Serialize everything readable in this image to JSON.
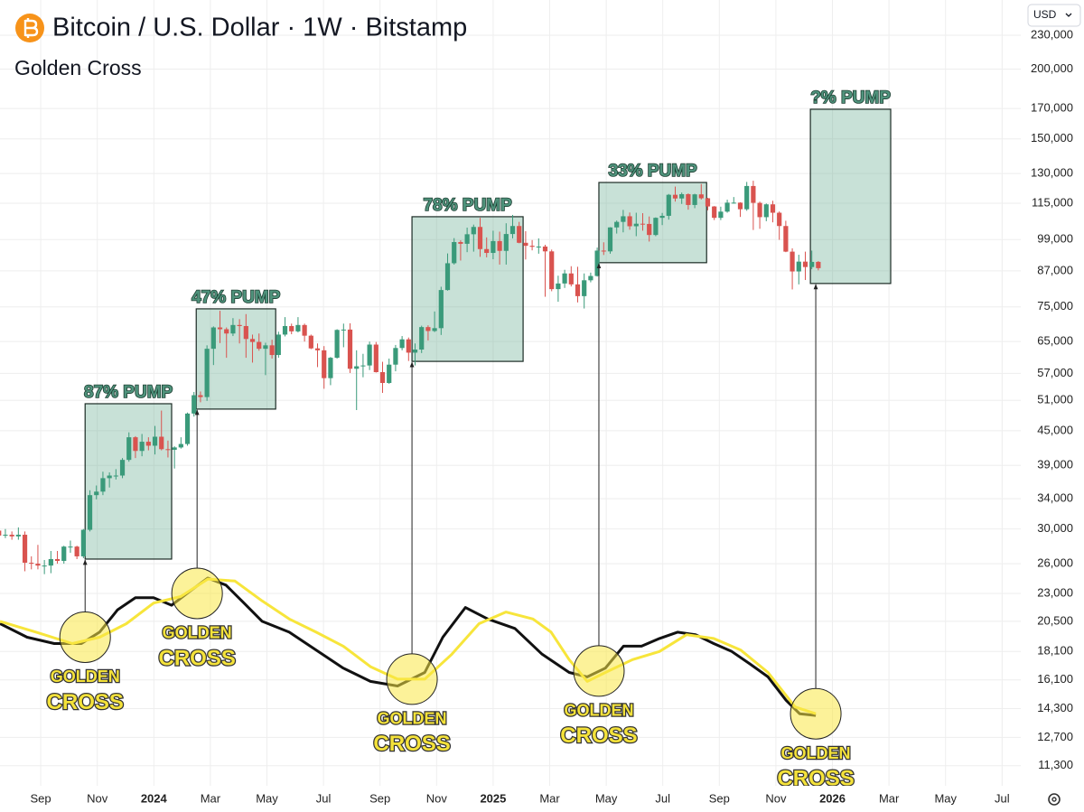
{
  "chart_data": {
    "type": "candlestick",
    "title": "Bitcoin / U.S. Dollar · 1W · Bitstamp",
    "subtitle": "Golden Cross",
    "currency": "USD",
    "log_scale": true,
    "grid": true,
    "up_color": "#3a9a7a",
    "down_color": "#d9534f",
    "xlim": [
      6.56,
      42.66
    ],
    "xticks": [
      {
        "value": 8,
        "label": "Sep"
      },
      {
        "value": 10,
        "label": "Nov"
      },
      {
        "value": 12,
        "label": "2024"
      },
      {
        "value": 14,
        "label": "Mar"
      },
      {
        "value": 16,
        "label": "May"
      },
      {
        "value": 18,
        "label": "Jul"
      },
      {
        "value": 20,
        "label": "Sep"
      },
      {
        "value": 22,
        "label": "Nov"
      },
      {
        "value": 24,
        "label": "2025"
      },
      {
        "value": 26,
        "label": "Mar"
      },
      {
        "value": 28,
        "label": "May"
      },
      {
        "value": 30,
        "label": "Jul"
      },
      {
        "value": 32,
        "label": "Sep"
      },
      {
        "value": 34,
        "label": "Nov"
      },
      {
        "value": 36,
        "label": "2026"
      },
      {
        "value": 38,
        "label": "Mar"
      },
      {
        "value": 40,
        "label": "May"
      },
      {
        "value": 42,
        "label": "Jul"
      }
    ],
    "ylim": [
      10400,
      266000
    ],
    "yticks": [
      {
        "value": 230000,
        "label": "230,000"
      },
      {
        "value": 200000,
        "label": "200,000"
      },
      {
        "value": 170000,
        "label": "170,000"
      },
      {
        "value": 150000,
        "label": "150,000"
      },
      {
        "value": 130000,
        "label": "130,000"
      },
      {
        "value": 115000,
        "label": "115,000"
      },
      {
        "value": 99000,
        "label": "99,000"
      },
      {
        "value": 87000,
        "label": "87,000"
      },
      {
        "value": 75000,
        "label": "75,000"
      },
      {
        "value": 65000,
        "label": "65,000"
      },
      {
        "value": 57000,
        "label": "57,000"
      },
      {
        "value": 51000,
        "label": "51,000"
      },
      {
        "value": 45000,
        "label": "45,000"
      },
      {
        "value": 39000,
        "label": "39,000"
      },
      {
        "value": 34000,
        "label": "34,000"
      },
      {
        "value": 30000,
        "label": "30,000"
      },
      {
        "value": 26000,
        "label": "26,000"
      },
      {
        "value": 23000,
        "label": "23,000"
      },
      {
        "value": 20500,
        "label": "20,500"
      },
      {
        "value": 18100,
        "label": "18,100"
      },
      {
        "value": 16100,
        "label": "16,100"
      },
      {
        "value": 14300,
        "label": "14,300"
      },
      {
        "value": 12700,
        "label": "12,700"
      },
      {
        "value": 11300,
        "label": "11,300"
      }
    ],
    "x": [
      6.52,
      6.75,
      6.98,
      7.21,
      7.44,
      7.67,
      7.9,
      8.13,
      8.36,
      8.59,
      8.82,
      9.05,
      9.28,
      9.51,
      9.74,
      9.97,
      10.2,
      10.43,
      10.66,
      10.89,
      11.12,
      11.35,
      11.58,
      11.81,
      12.04,
      12.27,
      12.5,
      12.73,
      12.96,
      13.19,
      13.42,
      13.65,
      13.88,
      14.11,
      14.34,
      14.57,
      14.8,
      15.03,
      15.26,
      15.49,
      15.72,
      15.95,
      16.18,
      16.41,
      16.64,
      16.87,
      17.1,
      17.33,
      17.56,
      17.79,
      18.02,
      18.25,
      18.48,
      18.71,
      18.94,
      19.17,
      19.4,
      19.63,
      19.86,
      20.09,
      20.32,
      20.55,
      20.78,
      21.01,
      21.24,
      21.47,
      21.7,
      21.93,
      22.16,
      22.39,
      22.62,
      22.85,
      23.08,
      23.31,
      23.54,
      23.77,
      24.0,
      24.23,
      24.46,
      24.69,
      24.92,
      25.15,
      25.38,
      25.61,
      25.84,
      26.07,
      26.3,
      26.53,
      26.76,
      26.99,
      27.22,
      27.45,
      27.68,
      27.91,
      28.14,
      28.37,
      28.6,
      28.83,
      29.06,
      29.29,
      29.52,
      29.75,
      29.98,
      30.21,
      30.44,
      30.67,
      30.9,
      31.13,
      31.36,
      31.59,
      31.82,
      32.05,
      32.28,
      32.51,
      32.74,
      32.97,
      33.2,
      33.43,
      33.66,
      33.89,
      34.12,
      34.35,
      34.58,
      34.81,
      35.04,
      35.27,
      35.5
    ],
    "ohlc": [
      [
        29800,
        30300,
        29000,
        29200
      ],
      [
        29200,
        30000,
        28900,
        29300
      ],
      [
        29300,
        29700,
        28700,
        29100
      ],
      [
        29100,
        30200,
        28700,
        29300
      ],
      [
        29300,
        29700,
        25200,
        26100
      ],
      [
        26100,
        26800,
        25400,
        26000
      ],
      [
        26000,
        28100,
        25400,
        25800
      ],
      [
        25800,
        26400,
        24900,
        25800
      ],
      [
        25800,
        27400,
        25000,
        26500
      ],
      [
        26500,
        27400,
        26000,
        26300
      ],
      [
        26300,
        28000,
        26000,
        27900
      ],
      [
        27900,
        28600,
        27200,
        27900
      ],
      [
        27900,
        28000,
        26500,
        26800
      ],
      [
        26800,
        30000,
        26600,
        29900
      ],
      [
        29900,
        35200,
        29700,
        34500
      ],
      [
        34500,
        35900,
        33900,
        35000
      ],
      [
        35000,
        38000,
        34500,
        37000
      ],
      [
        37000,
        37900,
        35600,
        37400
      ],
      [
        37400,
        38400,
        36800,
        37400
      ],
      [
        37400,
        40200,
        37000,
        39900
      ],
      [
        39900,
        44700,
        39600,
        43800
      ],
      [
        43800,
        44000,
        40200,
        41400
      ],
      [
        41400,
        44400,
        40500,
        43000
      ],
      [
        43000,
        43800,
        41500,
        42300
      ],
      [
        42300,
        45900,
        40800,
        43900
      ],
      [
        43900,
        48900,
        41500,
        41700
      ],
      [
        41700,
        43200,
        40300,
        41600
      ],
      [
        41600,
        42200,
        38500,
        42000
      ],
      [
        42000,
        43800,
        41800,
        42600
      ],
      [
        42600,
        48500,
        42300,
        48300
      ],
      [
        48300,
        52800,
        47700,
        52100
      ],
      [
        52100,
        52900,
        50600,
        51700
      ],
      [
        51700,
        64000,
        50900,
        63100
      ],
      [
        63100,
        69200,
        59000,
        68900
      ],
      [
        68900,
        73800,
        64600,
        68400
      ],
      [
        68400,
        68900,
        60800,
        67200
      ],
      [
        67200,
        71600,
        66500,
        69600
      ],
      [
        69600,
        71300,
        64500,
        69300
      ],
      [
        69300,
        72800,
        60800,
        65700
      ],
      [
        65700,
        66900,
        59600,
        64900
      ],
      [
        64900,
        67200,
        62600,
        63100
      ],
      [
        63100,
        64700,
        56600,
        64000
      ],
      [
        64000,
        65500,
        60600,
        61500
      ],
      [
        61500,
        67700,
        60800,
        66900
      ],
      [
        66900,
        71900,
        66400,
        69300
      ],
      [
        69300,
        70000,
        67000,
        67800
      ],
      [
        67800,
        71900,
        67500,
        69600
      ],
      [
        69600,
        70000,
        65000,
        66600
      ],
      [
        66600,
        66900,
        63000,
        63200
      ],
      [
        63200,
        64500,
        58500,
        62700
      ],
      [
        62700,
        63800,
        53500,
        55900
      ],
      [
        55900,
        61000,
        54300,
        60800
      ],
      [
        60800,
        68400,
        60600,
        68200
      ],
      [
        68200,
        70000,
        63500,
        68300
      ],
      [
        68300,
        70100,
        57100,
        58100
      ],
      [
        58100,
        62700,
        49000,
        58700
      ],
      [
        58700,
        61800,
        56100,
        58900
      ],
      [
        58900,
        65000,
        57800,
        64200
      ],
      [
        64200,
        64900,
        57200,
        57300
      ],
      [
        57300,
        59800,
        52600,
        54800
      ],
      [
        54800,
        60600,
        54600,
        59100
      ],
      [
        59100,
        64100,
        57500,
        63300
      ],
      [
        63300,
        66500,
        62700,
        65600
      ],
      [
        65600,
        66100,
        60000,
        62100
      ],
      [
        62100,
        64500,
        58900,
        62900
      ],
      [
        62900,
        69400,
        62000,
        69000
      ],
      [
        69000,
        69500,
        65300,
        67900
      ],
      [
        67900,
        73600,
        67600,
        68700
      ],
      [
        68700,
        81500,
        66800,
        80400
      ],
      [
        80400,
        93500,
        80200,
        89800
      ],
      [
        89800,
        99600,
        89300,
        98000
      ],
      [
        98000,
        98700,
        90800,
        97300
      ],
      [
        97300,
        104000,
        94000,
        101200
      ],
      [
        101200,
        105300,
        94200,
        104300
      ],
      [
        104300,
        108300,
        92200,
        95200
      ],
      [
        95200,
        99900,
        92000,
        93700
      ],
      [
        93700,
        102700,
        91300,
        98400
      ],
      [
        98400,
        102300,
        89300,
        94500
      ],
      [
        94500,
        105900,
        89300,
        101300
      ],
      [
        101300,
        109600,
        99500,
        104700
      ],
      [
        104700,
        106500,
        97500,
        97700
      ],
      [
        97700,
        102500,
        91200,
        96500
      ],
      [
        96500,
        98800,
        94700,
        96100
      ],
      [
        96100,
        99500,
        93400,
        96200
      ],
      [
        96200,
        96900,
        78200,
        94300
      ],
      [
        94300,
        95000,
        80000,
        80700
      ],
      [
        80700,
        85300,
        76600,
        82600
      ],
      [
        82600,
        87400,
        81100,
        86100
      ],
      [
        86100,
        88700,
        81600,
        82300
      ],
      [
        82300,
        88500,
        76400,
        78400
      ],
      [
        78400,
        86100,
        74500,
        83700
      ],
      [
        83700,
        86400,
        83000,
        85200
      ],
      [
        85200,
        95800,
        85000,
        94600
      ],
      [
        94600,
        97900,
        92900,
        94300
      ],
      [
        94300,
        104200,
        93400,
        104100
      ],
      [
        104100,
        107100,
        101500,
        106500
      ],
      [
        106500,
        111900,
        102000,
        109000
      ],
      [
        109000,
        110700,
        103100,
        104600
      ],
      [
        104600,
        110600,
        100400,
        105700
      ],
      [
        105700,
        110400,
        102700,
        105600
      ],
      [
        105600,
        108900,
        98200,
        100900
      ],
      [
        100900,
        108500,
        100400,
        108300
      ],
      [
        108300,
        110500,
        105100,
        109200
      ],
      [
        109200,
        119500,
        107500,
        119100
      ],
      [
        119100,
        123200,
        115800,
        117300
      ],
      [
        117300,
        120200,
        114700,
        119400
      ],
      [
        119400,
        119800,
        112000,
        114200
      ],
      [
        114200,
        119600,
        112700,
        119300
      ],
      [
        119300,
        124500,
        116800,
        117400
      ],
      [
        117400,
        117600,
        111700,
        113500
      ],
      [
        113500,
        113700,
        107300,
        108300
      ],
      [
        108300,
        113400,
        107300,
        111100
      ],
      [
        111100,
        116700,
        110600,
        115300
      ],
      [
        115300,
        118000,
        114800,
        115300
      ],
      [
        115300,
        115500,
        108700,
        112200
      ],
      [
        112200,
        125600,
        111500,
        123500
      ],
      [
        123500,
        126200,
        103000,
        115200
      ],
      [
        115200,
        115800,
        103500,
        108600
      ],
      [
        108600,
        114900,
        106800,
        114500
      ],
      [
        114500,
        116200,
        106300,
        110600
      ],
      [
        110600,
        111200,
        98900,
        104700
      ],
      [
        104700,
        107000,
        94000,
        94200
      ],
      [
        94200,
        95500,
        80600,
        86800
      ],
      [
        86800,
        93000,
        82300,
        90400
      ],
      [
        90400,
        94200,
        83800,
        88400
      ],
      [
        88400,
        94600,
        87600,
        90300
      ],
      [
        90300,
        90600,
        87200,
        88000
      ]
    ],
    "lines": [
      {
        "color": "#111111",
        "x": [
          6.56,
          7.52,
          8.48,
          9.44,
          10.08,
          10.72,
          11.35,
          11.99,
          12.63,
          13.27,
          13.91,
          14.55,
          15.19,
          15.83,
          16.79,
          17.74,
          18.7,
          19.66,
          20.62,
          21.58,
          22.22,
          23.02,
          23.81,
          24.77,
          25.73,
          26.69,
          27.33,
          27.97,
          28.61,
          29.25,
          29.88,
          30.52,
          31.16,
          31.8,
          32.44,
          33.08,
          33.72,
          34.36,
          34.84,
          35.41
        ],
        "values": [
          20300,
          19200,
          18700,
          18700,
          19600,
          21500,
          22600,
          22600,
          21900,
          23200,
          24500,
          23800,
          22100,
          20500,
          19600,
          18200,
          16900,
          16000,
          15700,
          16600,
          19200,
          21700,
          20700,
          19900,
          17900,
          16600,
          16300,
          16900,
          18500,
          18500,
          19100,
          19600,
          19400,
          18700,
          18100,
          17200,
          16300,
          14800,
          14000,
          13900
        ]
      },
      {
        "color": "#f7e53b",
        "x": [
          6.56,
          7.84,
          9.12,
          10.08,
          11.03,
          11.99,
          12.95,
          13.91,
          14.87,
          15.83,
          16.79,
          17.74,
          18.7,
          19.66,
          20.62,
          21.58,
          22.54,
          23.5,
          24.45,
          25.41,
          26.05,
          26.69,
          27.33,
          27.97,
          28.93,
          29.88,
          30.84,
          31.8,
          32.76,
          33.72,
          34.68,
          35.41
        ],
        "values": [
          20500,
          19600,
          18700,
          19200,
          20300,
          22100,
          22700,
          24400,
          24200,
          22300,
          20700,
          19600,
          18500,
          17000,
          16150,
          16150,
          17900,
          20300,
          21300,
          20700,
          19600,
          17500,
          16000,
          16600,
          17500,
          18100,
          19400,
          19100,
          18200,
          16600,
          14400,
          14000
        ]
      }
    ],
    "boxes": [
      {
        "label": "87% PUMP",
        "x": [
          9.57,
          12.63
        ],
        "y": [
          26500,
          50300
        ]
      },
      {
        "label": "47% PUMP",
        "x": [
          13.5,
          16.31
        ],
        "y": [
          49200,
          74400
        ]
      },
      {
        "label": "78% PUMP",
        "x": [
          21.13,
          25.06
        ],
        "y": [
          59900,
          108800
        ]
      },
      {
        "label": "33% PUMP",
        "x": [
          27.74,
          31.55
        ],
        "y": [
          90000,
          125300
        ]
      },
      {
        "label": "?% PUMP",
        "x": [
          35.22,
          38.06
        ],
        "y": [
          82600,
          169500
        ]
      }
    ],
    "crosses": [
      {
        "label": [
          "GOLDEN",
          "CROSS"
        ],
        "x": 9.57,
        "y": 19200
      },
      {
        "label": [
          "GOLDEN",
          "CROSS"
        ],
        "x": 13.53,
        "y": 23000
      },
      {
        "label": [
          "GOLDEN",
          "CROSS"
        ],
        "x": 21.13,
        "y": 16150
      },
      {
        "label": [
          "GOLDEN",
          "CROSS"
        ],
        "x": 27.74,
        "y": 16700
      },
      {
        "label": [
          "GOLDEN",
          "CROSS"
        ],
        "x": 35.41,
        "y": 14000
      }
    ]
  }
}
